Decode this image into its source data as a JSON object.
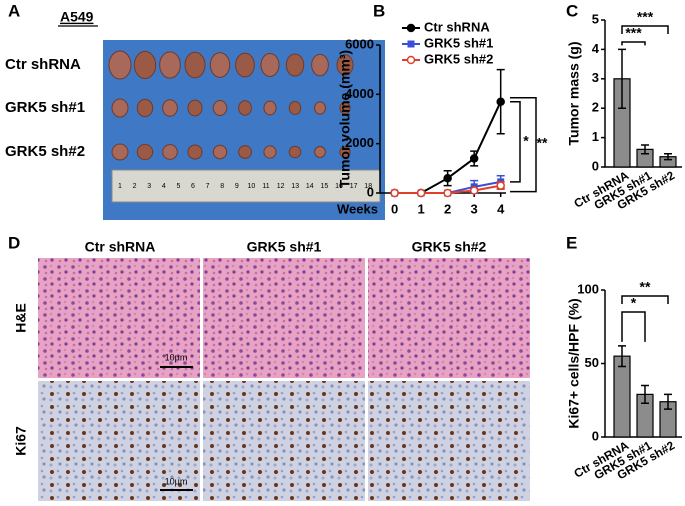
{
  "panels": {
    "a": "A",
    "b": "B",
    "c": "C",
    "d": "D",
    "e": "E"
  },
  "panel_a": {
    "cell_line": "A549",
    "rows": [
      "Ctr shRNA",
      "GRK5 sh#1",
      "GRK5 sh#2"
    ],
    "ruler": [
      "1",
      "2",
      "3",
      "4",
      "5",
      "6",
      "7",
      "8",
      "9",
      "10",
      "11",
      "12",
      "13",
      "14",
      "15",
      "16",
      "17",
      "18"
    ]
  },
  "panel_d": {
    "columns": [
      "Ctr shRNA",
      "GRK5 sh#1",
      "GRK5 sh#2"
    ],
    "rows": [
      "H&E",
      "Ki67"
    ],
    "scale_bar": "10μm"
  },
  "chart_data": [
    {
      "type": "line",
      "ylabel": "Tumor volume (mm³)",
      "xlabel": "Weeks",
      "x": [
        0,
        1,
        2,
        3,
        4
      ],
      "xlim": [
        -0.55,
        4.2
      ],
      "xticks": [
        0,
        1,
        2,
        3,
        4
      ],
      "ylim": [
        0,
        6000
      ],
      "yticks": [
        0,
        2000,
        4000,
        6000
      ],
      "series": [
        {
          "name": "Ctr shRNA",
          "color": "#000000",
          "marker": "circle",
          "values": [
            0,
            0,
            600,
            1400,
            3700
          ],
          "errors": [
            0,
            0,
            300,
            300,
            1300
          ]
        },
        {
          "name": "GRK5 sh#1",
          "color": "#3a4fd8",
          "marker": "square",
          "values": [
            0,
            0,
            0,
            250,
            450
          ],
          "errors": [
            0,
            0,
            0,
            250,
            250
          ]
        },
        {
          "name": "GRK5 sh#2",
          "color": "#e0402a",
          "marker": "circle-open",
          "values": [
            0,
            0,
            0,
            100,
            300
          ],
          "errors": [
            0,
            0,
            0,
            60,
            150
          ]
        }
      ],
      "annotations": [
        "*",
        "**"
      ]
    },
    {
      "type": "bar",
      "ylabel": "Tumor mass (g)",
      "categories": [
        "Ctr shRNA",
        "GRK5 sh#1",
        "GRK5 sh#2"
      ],
      "values": [
        3.0,
        0.6,
        0.35
      ],
      "errors": [
        1.0,
        0.15,
        0.1
      ],
      "color": "#8c8c8c",
      "ylim": [
        0,
        5
      ],
      "yticks": [
        0,
        1,
        2,
        3,
        4,
        5
      ],
      "annotations": [
        "***",
        "***"
      ]
    },
    {
      "type": "bar",
      "ylabel": "Ki67+ cells/HPF (%)",
      "categories": [
        "Ctr shRNA",
        "GRK5 sh#1",
        "GRK5 sh#2"
      ],
      "values": [
        55,
        29,
        24
      ],
      "errors": [
        7,
        6,
        5
      ],
      "color": "#8c8c8c",
      "ylim": [
        0,
        100
      ],
      "yticks": [
        0,
        50,
        100
      ],
      "annotations": [
        "*",
        "**"
      ]
    }
  ]
}
